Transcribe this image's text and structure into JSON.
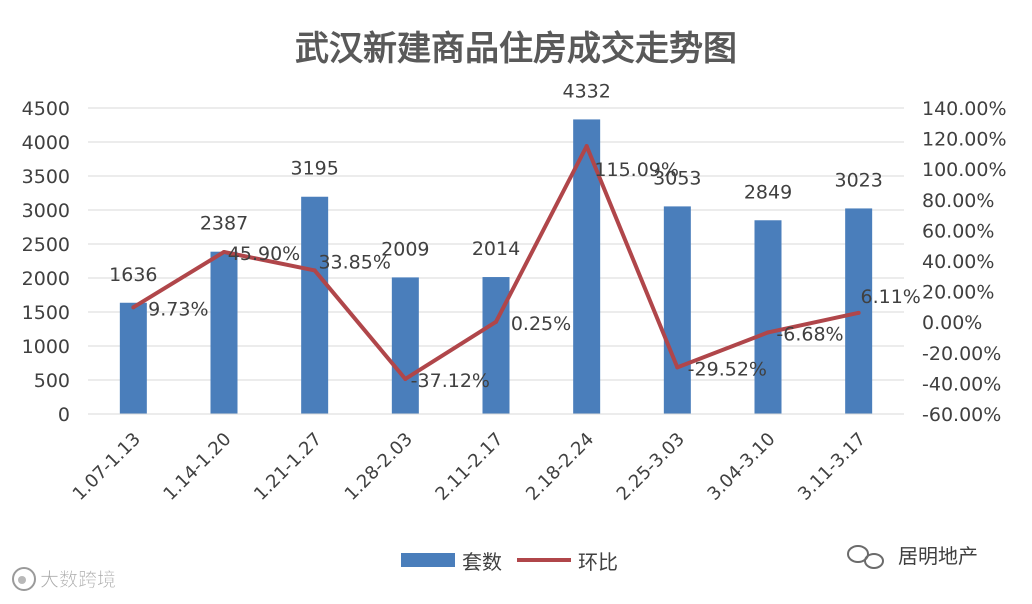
{
  "chart_data": {
    "type": "bar",
    "title": "武汉新建商品住房成交走势图",
    "categories": [
      "1.07-1.13",
      "1.14-1.20",
      "1.21-1.27",
      "1.28-2.03",
      "2.11-2.17",
      "2.18-2.24",
      "2.25-3.03",
      "3.04-3.10",
      "3.11-3.17"
    ],
    "series": [
      {
        "name": "套数",
        "kind": "bar",
        "axis": "left",
        "values": [
          1636,
          2387,
          3195,
          2009,
          2014,
          4332,
          3053,
          2849,
          3023
        ],
        "labels": [
          "1636",
          "2387",
          "3195",
          "2009",
          "2014",
          "4332",
          "3053",
          "2849",
          "3023"
        ],
        "color": "#4a7ebb"
      },
      {
        "name": "环比",
        "kind": "line",
        "axis": "right",
        "values": [
          9.73,
          45.9,
          33.85,
          -37.12,
          0.25,
          115.09,
          -29.52,
          -6.68,
          6.11
        ],
        "labels": [
          "9.73%",
          "45.90%",
          "33.85%",
          "-37.12%",
          "0.25%",
          "115.09%",
          "-29.52%",
          "-6.68%",
          "6.11%"
        ],
        "color": "#b0464a"
      }
    ],
    "y_left": {
      "min": 0,
      "max": 4500,
      "ticks": [
        "0",
        "500",
        "1000",
        "1500",
        "2000",
        "2500",
        "3000",
        "3500",
        "4000",
        "4500"
      ]
    },
    "y_right": {
      "min": -60,
      "max": 140,
      "ticks": [
        "-60.00%",
        "-40.00%",
        "-20.00%",
        "0.00%",
        "20.00%",
        "40.00%",
        "60.00%",
        "80.00%",
        "100.00%",
        "120.00%",
        "140.00%"
      ]
    },
    "grid": true,
    "legend_position": "bottom",
    "colors": {
      "bar": "#4a7ebb",
      "line": "#b0464a",
      "grid": "#d9d9d9",
      "text": "#404040",
      "title": "#595959"
    }
  },
  "watermarks": {
    "bottom_left": "大数跨境",
    "bottom_right": "居明地产"
  }
}
